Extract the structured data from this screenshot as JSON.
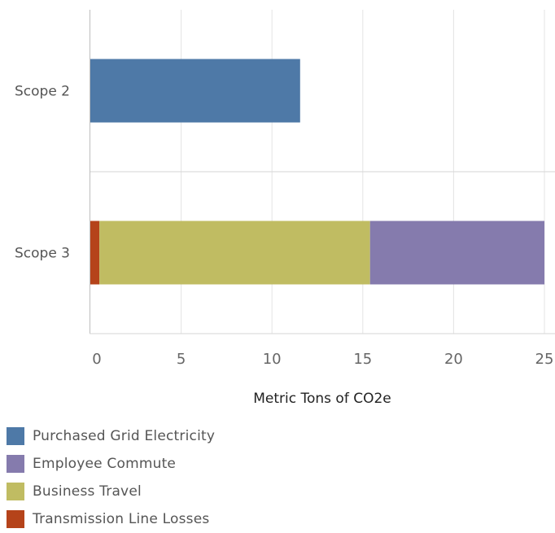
{
  "chart_data": {
    "type": "bar",
    "orientation": "horizontal",
    "stacked": true,
    "categories": [
      "Scope 2",
      "Scope 3"
    ],
    "series": [
      {
        "name": "Transmission Line Losses",
        "values": [
          0,
          0.5
        ],
        "color": "#b5431a"
      },
      {
        "name": "Business Travel",
        "values": [
          0,
          14.9
        ],
        "color": "#c0bc62"
      },
      {
        "name": "Employee Commute",
        "values": [
          0,
          9.6
        ],
        "color": "#857bad"
      },
      {
        "name": "Purchased Grid Electricity",
        "values": [
          11.55,
          0
        ],
        "color": "#4e79a7"
      }
    ],
    "xlabel": "Metric Tons of CO2e",
    "xlim": [
      0,
      25.5
    ],
    "xticks": [
      0,
      5,
      10,
      15,
      20,
      25
    ],
    "grid": true,
    "legend_position": "bottom-left",
    "legend_entries": [
      {
        "label": "Purchased Grid Electricity",
        "color": "#4e79a7"
      },
      {
        "label": "Employee Commute",
        "color": "#857bad"
      },
      {
        "label": "Business Travel",
        "color": "#c0bc62"
      },
      {
        "label": "Transmission Line Losses",
        "color": "#b5431a"
      }
    ]
  }
}
